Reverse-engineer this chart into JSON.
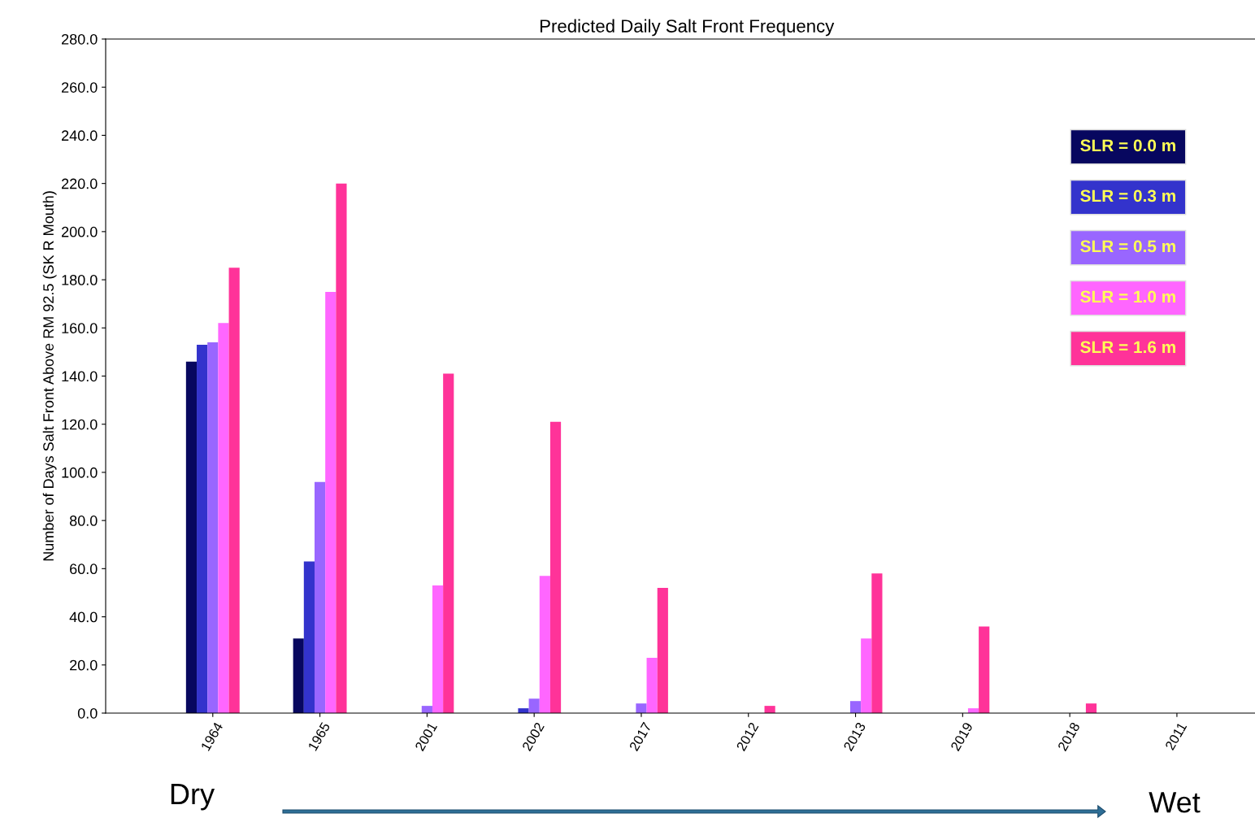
{
  "chart_data": {
    "type": "bar",
    "title": "Predicted Daily Salt Front Frequency",
    "ylabel": "Number of Days Salt Front Above RM 92.5 (SK R Mouth)",
    "categories": [
      "1964",
      "1965",
      "2001",
      "2002",
      "2017",
      "2012",
      "2013",
      "2019",
      "2018",
      "2011"
    ],
    "series": [
      {
        "name": "SLR = 0.0 m",
        "color": "#07075f",
        "values": [
          146,
          31,
          0,
          0,
          0,
          0,
          0,
          0,
          0,
          0
        ]
      },
      {
        "name": "SLR = 0.3 m",
        "color": "#3333cc",
        "values": [
          153,
          63,
          0,
          2,
          0,
          0,
          0,
          0,
          0,
          0
        ]
      },
      {
        "name": "SLR = 0.5 m",
        "color": "#9966ff",
        "values": [
          154,
          96,
          3,
          6,
          4,
          0,
          5,
          0,
          0,
          0
        ]
      },
      {
        "name": "SLR = 1.0 m",
        "color": "#ff66ff",
        "values": [
          162,
          175,
          53,
          57,
          23,
          0,
          31,
          2,
          0,
          0
        ]
      },
      {
        "name": "SLR = 1.6 m",
        "color": "#ff3399",
        "values": [
          185,
          220,
          141,
          121,
          52,
          3,
          58,
          36,
          4,
          0
        ]
      }
    ],
    "ylim": [
      0,
      280
    ],
    "yticks": [
      {
        "value": 0,
        "label": "0.0"
      },
      {
        "value": 20,
        "label": "20.0"
      },
      {
        "value": 40,
        "label": "40.0"
      },
      {
        "value": 60,
        "label": "60.0"
      },
      {
        "value": 80,
        "label": "80.0"
      },
      {
        "value": 100,
        "label": "100.0"
      },
      {
        "value": 120,
        "label": "120.0"
      },
      {
        "value": 140,
        "label": "140.0"
      },
      {
        "value": 160,
        "label": "160.0"
      },
      {
        "value": 180,
        "label": "180.0"
      },
      {
        "value": 200,
        "label": "200.0"
      },
      {
        "value": 220,
        "label": "220.0"
      },
      {
        "value": 240,
        "label": "240.0"
      },
      {
        "value": 260,
        "label": "260.0"
      },
      {
        "value": 280,
        "label": "280.0"
      }
    ],
    "legend": "top right",
    "grid": false,
    "annotations": [
      "Dry",
      "Wet"
    ]
  }
}
